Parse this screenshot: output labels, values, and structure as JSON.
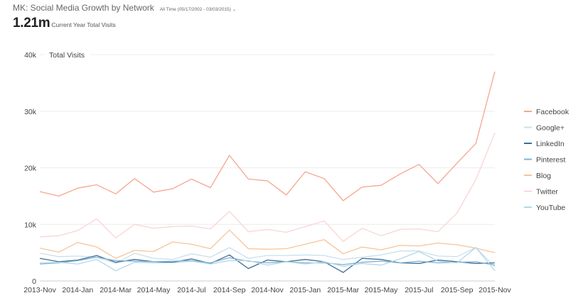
{
  "header": {
    "title": "MK: Social Media Growth by Network",
    "date_range": "All Time (05/17/2002 - 03/03/2015)",
    "kpi_value": "1.21m",
    "kpi_label": "Current Year Total Visits"
  },
  "chart_data": {
    "type": "line",
    "title": "",
    "ylabel": "Total Visits",
    "xlabel": "",
    "ylim": [
      0,
      40000
    ],
    "yticks": [
      0,
      10000,
      20000,
      30000,
      40000
    ],
    "ytick_labels": [
      "0",
      "10k",
      "20k",
      "30k",
      "40k"
    ],
    "grid": "horizontal",
    "legend_position": "right",
    "x": [
      "2013-Nov",
      "2013-Dec",
      "2014-Jan",
      "2014-Feb",
      "2014-Mar",
      "2014-Apr",
      "2014-May",
      "2014-Jun",
      "2014-Jul",
      "2014-Aug",
      "2014-Sep",
      "2014-Oct",
      "2014-Nov",
      "2014-Dec",
      "2015-Jan",
      "2015-Feb",
      "2015-Mar",
      "2015-Apr",
      "2015-May",
      "2015-Jun",
      "2015-Jul",
      "2015-Aug",
      "2015-Sep",
      "2015-Oct",
      "2015-Nov"
    ],
    "xtick_labels": [
      "2013-Nov",
      "2014-Jan",
      "2014-Mar",
      "2014-May",
      "2014-Jul",
      "2014-Sep",
      "2014-Nov",
      "2015-Jan",
      "2015-Mar",
      "2015-May",
      "2015-Jul",
      "2015-Sep",
      "2015-Nov"
    ],
    "series": [
      {
        "name": "Facebook",
        "color": "#f5a690",
        "values": [
          15800,
          15000,
          16400,
          17000,
          15400,
          18100,
          15700,
          16300,
          18000,
          16500,
          22200,
          18000,
          17700,
          15200,
          19300,
          18100,
          14200,
          16600,
          16900,
          18900,
          20600,
          17200,
          20800,
          24300,
          37000
        ]
      },
      {
        "name": "Google+",
        "color": "#c7e0ee",
        "values": [
          4900,
          4300,
          4400,
          4200,
          3100,
          4900,
          4000,
          3800,
          4800,
          4200,
          5900,
          4000,
          4500,
          4500,
          4600,
          4500,
          3800,
          4200,
          4600,
          5300,
          5300,
          4400,
          4300,
          5900,
          2500
        ]
      },
      {
        "name": "LinkedIn",
        "color": "#3f6d95",
        "values": [
          4000,
          3400,
          3700,
          4500,
          3300,
          3800,
          3400,
          3300,
          3900,
          3100,
          4600,
          2200,
          3700,
          3400,
          3800,
          3400,
          1500,
          4000,
          3800,
          3200,
          3100,
          3700,
          3400,
          3100,
          3200
        ]
      },
      {
        "name": "Pinterest",
        "color": "#7fb3d5",
        "values": [
          3000,
          3200,
          3600,
          4200,
          3600,
          3500,
          3400,
          3500,
          3600,
          3200,
          4100,
          3500,
          3200,
          3400,
          3200,
          3200,
          2900,
          3300,
          3500,
          3200,
          3500,
          3200,
          3300,
          3400,
          2800
        ]
      },
      {
        "name": "Blog",
        "color": "#f8c49a",
        "values": [
          5800,
          5100,
          6800,
          6000,
          4000,
          5400,
          5200,
          6900,
          6500,
          5700,
          9000,
          5700,
          5600,
          5700,
          6500,
          7300,
          4800,
          6000,
          5500,
          6300,
          6200,
          6700,
          6400,
          5800,
          5000
        ]
      },
      {
        "name": "Twitter",
        "color": "#f9d5d5",
        "values": [
          7800,
          8000,
          8900,
          11000,
          7600,
          10000,
          9300,
          9600,
          9700,
          9200,
          12300,
          8700,
          9100,
          8600,
          9600,
          10600,
          7000,
          9300,
          8000,
          9100,
          9200,
          8700,
          12000,
          17900,
          26200
        ]
      },
      {
        "name": "YouTube",
        "color": "#b5d7ea",
        "values": [
          3200,
          3300,
          3000,
          3800,
          1800,
          3300,
          3200,
          3200,
          3500,
          3000,
          3600,
          3600,
          2800,
          3400,
          3000,
          3400,
          2600,
          3100,
          2800,
          3900,
          5200,
          3500,
          3200,
          5900,
          1800
        ]
      }
    ]
  }
}
